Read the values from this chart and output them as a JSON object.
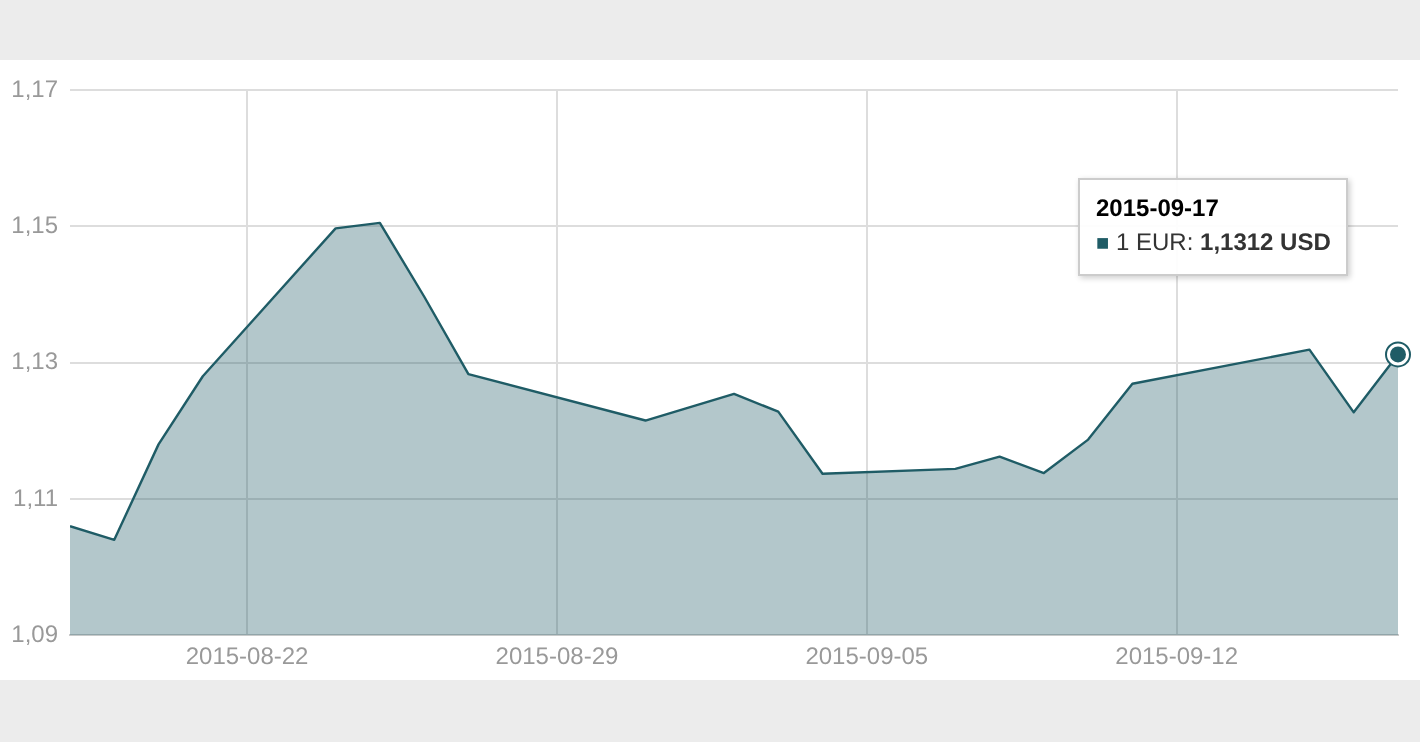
{
  "chart_data": {
    "type": "area",
    "x": [
      "2015-08-18",
      "2015-08-19",
      "2015-08-20",
      "2015-08-21",
      "2015-08-24",
      "2015-08-25",
      "2015-08-26",
      "2015-08-27",
      "2015-08-31",
      "2015-09-02",
      "2015-09-03",
      "2015-09-04",
      "2015-09-07",
      "2015-09-08",
      "2015-09-09",
      "2015-09-10",
      "2015-09-11",
      "2015-09-15",
      "2015-09-16",
      "2015-09-17"
    ],
    "series": [
      {
        "color": "#1f5c66",
        "values": [
          1.106,
          1.104,
          1.118,
          1.128,
          1.1497,
          1.1505,
          1.1397,
          1.1283,
          1.1215,
          1.1254,
          1.1228,
          1.1137,
          1.1144,
          1.1162,
          1.1138,
          1.1187,
          1.1269,
          1.1319,
          1.1227,
          1.1312
        ]
      }
    ],
    "xlim": [
      "2015-08-18",
      "2015-09-17"
    ],
    "xticks": [
      "2015-08-22",
      "2015-08-29",
      "2015-09-05",
      "2015-09-12"
    ],
    "ylim": [
      1.09,
      1.17
    ],
    "yticks": [
      {
        "value": 1.09,
        "label": "1,09"
      },
      {
        "value": 1.11,
        "label": "1,11"
      },
      {
        "value": 1.13,
        "label": "1,13"
      },
      {
        "value": 1.15,
        "label": "1,15"
      },
      {
        "value": 1.17,
        "label": "1,17"
      }
    ],
    "grid": true,
    "legend": false,
    "marker": "none",
    "line_style": "solid",
    "annotations": [
      "2015-09-17",
      "■ 1 EUR: 1,1312 USD"
    ]
  }
}
